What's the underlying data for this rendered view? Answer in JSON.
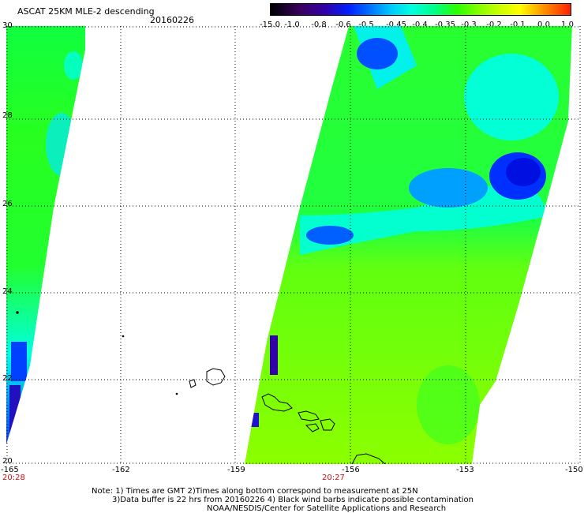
{
  "header": {
    "title": "ASCAT 25KM MLE-2 descending",
    "date": "20160226"
  },
  "colorbar": {
    "labels": [
      "-15.0",
      "-1.0",
      "-0.8",
      "-0.6",
      "-0.5",
      "-0.45",
      "-0.4",
      "-0.35",
      "-0.3",
      "-0.2",
      "-0.1",
      "0.0",
      "1.0"
    ]
  },
  "map": {
    "lat_labels": [
      "30",
      "28",
      "26",
      "24",
      "22",
      "20"
    ],
    "lon_labels": [
      "-165",
      "-162",
      "-159",
      "-156",
      "-153",
      "-150"
    ],
    "pass_times": [
      "20:28",
      "20:27"
    ],
    "colors": {
      "grid": "#000000",
      "time_label": "#d01010",
      "coast": "#000000"
    }
  },
  "notes": {
    "line1": "Note: 1) Times are GMT 2)Times along bottom correspond to measurement at 25N",
    "line2": "3)Data buffer is 22 hrs from 20160226 4) Black wind barbs indicate possible contamination",
    "line3": "NOAA/NESDIS/Center for Satellite Applications and Research"
  }
}
